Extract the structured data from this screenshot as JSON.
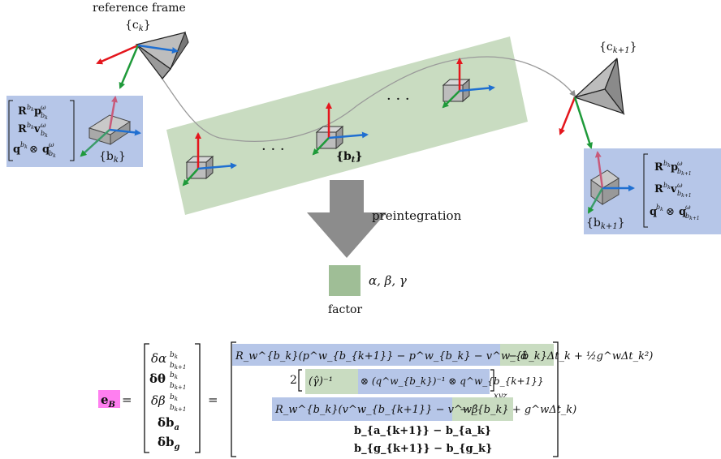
{
  "labels": {
    "reference_frame": "reference frame",
    "ck": "{c",
    "ck_sub": "k",
    "ck_close": "}",
    "ck1": "{c",
    "ck1_sub": "k+1",
    "ck1_close": "}",
    "bk": "{b",
    "bk_sub": "k",
    "bk_close": "}",
    "bt": "{b",
    "bt_sub": "t",
    "bt_close": "}",
    "bk1": "{b",
    "bk1_sub": "k+1",
    "bk1_close": "}",
    "dots": "· · ·",
    "preintegration": "preintegration",
    "factor": "factor",
    "factor_symbols": "α, β, γ"
  },
  "left_state": [
    "R",
    "R",
    "q"
  ],
  "equation": {
    "lhs": "e",
    "lhs_sub": "B",
    "equals": "=",
    "error_vector": [
      "δα",
      "δθ",
      "δβ",
      "δb",
      "δb"
    ],
    "error_subs": [
      "a",
      "g"
    ],
    "row1": "R_w^{b_k}(p^w_{b_{k+1}} − p^w_{b_k} − v^w_{b_k}Δt_k + ½g^wΔt_k²)",
    "row1_tail": "− α̂",
    "row2_coef": "2",
    "row2_gamma": "(γ̂)⁻¹",
    "row2_rest": "⊗ (q^w_{b_k})⁻¹ ⊗ q^w_{b_{k+1}}",
    "row2_xyz": "xyz",
    "row3": "R_w^{b_k}(v^w_{b_{k+1}} − v^w_{b_k} + g^wΔt_k)",
    "row3_tail": "− β̂",
    "row4": "b_{a_{k+1}} − b_{a_k}",
    "row5": "b_{g_{k+1}} − b_{g_k}"
  },
  "colors": {
    "blue_panel": "#b6c6e8",
    "green_panel": "#c9dcc1",
    "factor_box": "#9fbe96",
    "magenta": "#ff7ff0",
    "axis_red": "#e4161d",
    "axis_green": "#1f9a3a",
    "axis_blue": "#1f6fd1",
    "arrow_gray": "#8c8c8c"
  }
}
